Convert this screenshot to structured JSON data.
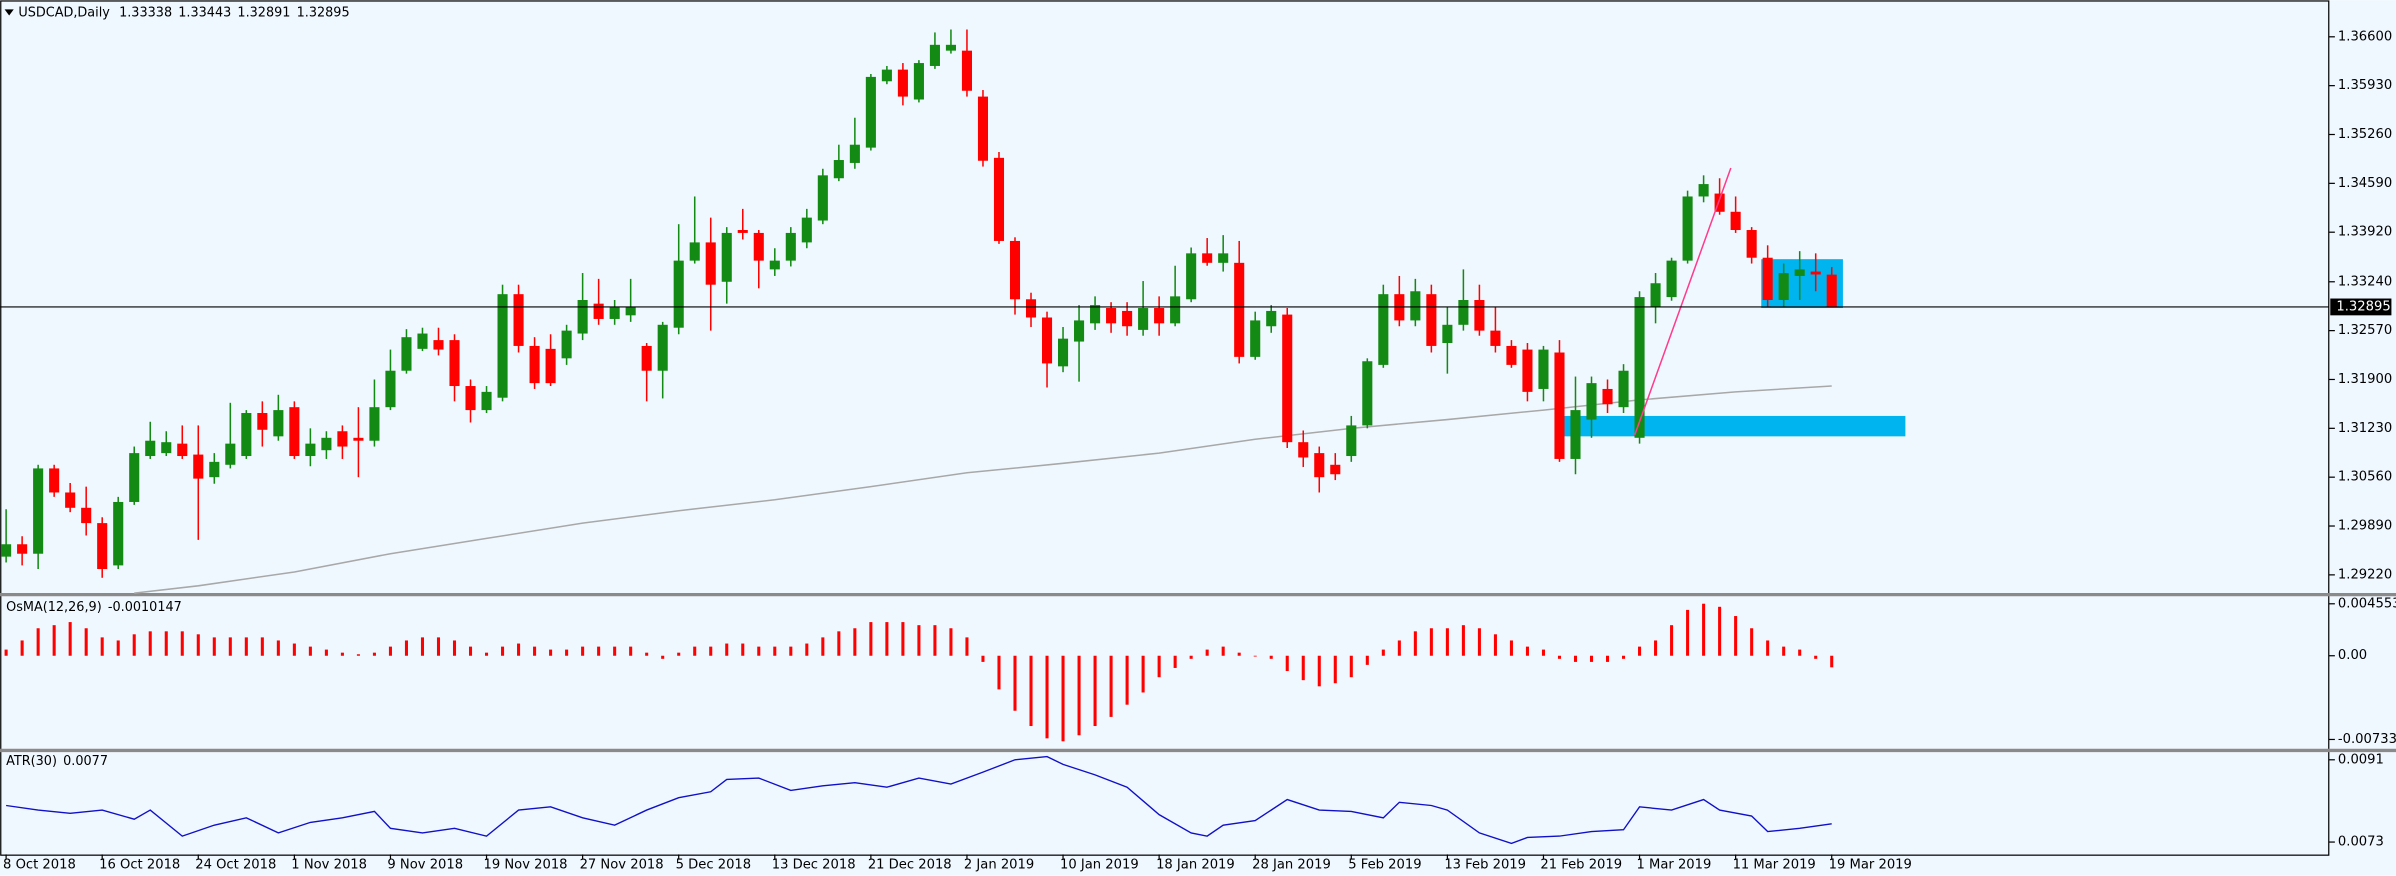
{
  "chart_data": [
    {
      "type": "candlestick",
      "title": "USDCAD,Daily",
      "categories": [
        "8 Oct 2018",
        null,
        null,
        null,
        null,
        null,
        "16 Oct 2018",
        null,
        null,
        null,
        null,
        null,
        "24 Oct 2018",
        null,
        null,
        null,
        null,
        null,
        "1 Nov 2018",
        null,
        null,
        null,
        null,
        null,
        "9 Nov 2018",
        null,
        null,
        null,
        null,
        null,
        "19 Nov 2018",
        null,
        null,
        null,
        null,
        null,
        "27 Nov 2018",
        null,
        null,
        null,
        null,
        null,
        "5 Dec 2018",
        null,
        null,
        null,
        null,
        null,
        "13 Dec 2018",
        null,
        null,
        null,
        null,
        null,
        "21 Dec 2018",
        null,
        null,
        null,
        null,
        null,
        "2 Jan 2019",
        null,
        null,
        null,
        null,
        null,
        "10 Jan 2019",
        null,
        null,
        null,
        null,
        null,
        "18 Jan 2019",
        null,
        null,
        null,
        null,
        null,
        "28 Jan 2019",
        null,
        null,
        null,
        null,
        null,
        "5 Feb 2019",
        null,
        null,
        null,
        null,
        null,
        "13 Feb 2019",
        null,
        null,
        null,
        null,
        null,
        "21 Feb 2019",
        null,
        null,
        null,
        null,
        null,
        "1 Mar 2019",
        null,
        null,
        null,
        null,
        null,
        "11 Mar 2019",
        null,
        null,
        null,
        null,
        null,
        "19 Mar 2019"
      ],
      "candles": [
        [
          1.2947,
          1.3012,
          1.2939,
          1.2964
        ],
        [
          1.2964,
          1.2975,
          1.2935,
          1.2951
        ],
        [
          1.2951,
          1.3073,
          1.293,
          1.3068
        ],
        [
          1.3068,
          1.3073,
          1.3029,
          1.3035
        ],
        [
          1.3035,
          1.3048,
          1.3008,
          1.3014
        ],
        [
          1.3014,
          1.3043,
          1.2976,
          1.2993
        ],
        [
          1.2993,
          1.3001,
          1.2918,
          1.293
        ],
        [
          1.2935,
          1.3029,
          1.293,
          1.3022
        ],
        [
          1.3022,
          1.3098,
          1.3018,
          1.3089
        ],
        [
          1.3085,
          1.3132,
          1.3081,
          1.3106
        ],
        [
          1.3089,
          1.3119,
          1.3085,
          1.3104
        ],
        [
          1.3102,
          1.3127,
          1.3081,
          1.3085
        ],
        [
          1.3087,
          1.3127,
          1.297,
          1.3054
        ],
        [
          1.3056,
          1.3089,
          1.3047,
          1.3077
        ],
        [
          1.3073,
          1.3158,
          1.3068,
          1.3102
        ],
        [
          1.3085,
          1.3148,
          1.3081,
          1.3144
        ],
        [
          1.3144,
          1.316,
          1.3098,
          1.3121
        ],
        [
          1.3112,
          1.3169,
          1.3106,
          1.3148
        ],
        [
          1.3152,
          1.316,
          1.3081,
          1.3085
        ],
        [
          1.3085,
          1.3123,
          1.3071,
          1.3102
        ],
        [
          1.3093,
          1.3119,
          1.3081,
          1.311
        ],
        [
          1.3119,
          1.3127,
          1.3081,
          1.3098
        ],
        [
          1.311,
          1.3152,
          1.3056,
          1.3106
        ],
        [
          1.3106,
          1.319,
          1.3098,
          1.3152
        ],
        [
          1.3152,
          1.3231,
          1.3148,
          1.3202
        ],
        [
          1.3202,
          1.3259,
          1.3198,
          1.3248
        ],
        [
          1.3232,
          1.3261,
          1.3229,
          1.3253
        ],
        [
          1.3244,
          1.3261,
          1.3223,
          1.3231
        ],
        [
          1.3244,
          1.3252,
          1.316,
          1.3181
        ],
        [
          1.3181,
          1.319,
          1.3131,
          1.3148
        ],
        [
          1.3148,
          1.3181,
          1.3144,
          1.3173
        ],
        [
          1.3165,
          1.332,
          1.316,
          1.3307
        ],
        [
          1.3307,
          1.332,
          1.3227,
          1.3236
        ],
        [
          1.3236,
          1.3248,
          1.3177,
          1.3185
        ],
        [
          1.3232,
          1.3252,
          1.3181,
          1.3185
        ],
        [
          1.3219,
          1.3265,
          1.321,
          1.3257
        ],
        [
          1.3253,
          1.3336,
          1.3244,
          1.3299
        ],
        [
          1.3294,
          1.3328,
          1.3265,
          1.3273
        ],
        [
          1.3273,
          1.3299,
          1.3265,
          1.329
        ],
        [
          1.3278,
          1.3328,
          1.3269,
          1.329
        ],
        [
          1.3236,
          1.324,
          1.316,
          1.3202
        ],
        [
          1.3202,
          1.3269,
          1.3164,
          1.3265
        ],
        [
          1.3261,
          1.3403,
          1.3252,
          1.3353
        ],
        [
          1.3353,
          1.3441,
          1.3349,
          1.3378
        ],
        [
          1.3378,
          1.3412,
          1.3257,
          1.332
        ],
        [
          1.3324,
          1.3399,
          1.3294,
          1.3391
        ],
        [
          1.3395,
          1.3424,
          1.3382,
          1.3391
        ],
        [
          1.3391,
          1.3395,
          1.3315,
          1.3353
        ],
        [
          1.3341,
          1.337,
          1.3332,
          1.3353
        ],
        [
          1.3353,
          1.3399,
          1.3345,
          1.3391
        ],
        [
          1.3378,
          1.3424,
          1.337,
          1.3412
        ],
        [
          1.3408,
          1.3479,
          1.3403,
          1.347
        ],
        [
          1.3466,
          1.3512,
          1.3462,
          1.3491
        ],
        [
          1.3487,
          1.3549,
          1.3479,
          1.3512
        ],
        [
          1.3508,
          1.3609,
          1.3504,
          1.3605
        ],
        [
          1.3599,
          1.362,
          1.3595,
          1.3615
        ],
        [
          1.3615,
          1.3624,
          1.3566,
          1.3578
        ],
        [
          1.3574,
          1.3628,
          1.357,
          1.3624
        ],
        [
          1.362,
          1.3666,
          1.3616,
          1.3649
        ],
        [
          1.3641,
          1.367,
          1.3637,
          1.3649
        ],
        [
          1.3641,
          1.367,
          1.3578,
          1.3586
        ],
        [
          1.3578,
          1.3587,
          1.3482,
          1.349
        ],
        [
          1.3494,
          1.3502,
          1.3376,
          1.338
        ],
        [
          1.338,
          1.3385,
          1.3279,
          1.33
        ],
        [
          1.33,
          1.3309,
          1.3262,
          1.3275
        ],
        [
          1.3275,
          1.3283,
          1.3179,
          1.3212
        ],
        [
          1.3208,
          1.3262,
          1.32,
          1.3246
        ],
        [
          1.3242,
          1.3292,
          1.3187,
          1.3271
        ],
        [
          1.3267,
          1.3304,
          1.3258,
          1.3292
        ],
        [
          1.3288,
          1.3296,
          1.3254,
          1.3267
        ],
        [
          1.3284,
          1.3296,
          1.325,
          1.3263
        ],
        [
          1.3258,
          1.3325,
          1.325,
          1.3288
        ],
        [
          1.3288,
          1.3304,
          1.325,
          1.3267
        ],
        [
          1.3267,
          1.3346,
          1.3263,
          1.3304
        ],
        [
          1.33,
          1.3371,
          1.3296,
          1.3363
        ],
        [
          1.3363,
          1.3384,
          1.3346,
          1.335
        ],
        [
          1.335,
          1.3388,
          1.3338,
          1.3363
        ],
        [
          1.335,
          1.338,
          1.3212,
          1.3221
        ],
        [
          1.3221,
          1.3283,
          1.3217,
          1.3271
        ],
        [
          1.3263,
          1.3292,
          1.3254,
          1.3284
        ],
        [
          1.3279,
          1.3288,
          1.3096,
          1.3104
        ],
        [
          1.3104,
          1.312,
          1.307,
          1.3083
        ],
        [
          1.3089,
          1.3098,
          1.3035,
          1.3056
        ],
        [
          1.3073,
          1.3089,
          1.3052,
          1.306
        ],
        [
          1.3085,
          1.314,
          1.3077,
          1.3127
        ],
        [
          1.3127,
          1.3219,
          1.3123,
          1.3215
        ],
        [
          1.321,
          1.332,
          1.3206,
          1.3307
        ],
        [
          1.3307,
          1.3332,
          1.3263,
          1.3271
        ],
        [
          1.3271,
          1.3328,
          1.3263,
          1.3311
        ],
        [
          1.3307,
          1.332,
          1.3227,
          1.3236
        ],
        [
          1.324,
          1.329,
          1.3198,
          1.3265
        ],
        [
          1.3265,
          1.3341,
          1.3257,
          1.3299
        ],
        [
          1.3299,
          1.332,
          1.325,
          1.3257
        ],
        [
          1.3257,
          1.329,
          1.3227,
          1.3236
        ],
        [
          1.3236,
          1.3244,
          1.3206,
          1.321
        ],
        [
          1.3231,
          1.324,
          1.316,
          1.3173
        ],
        [
          1.3177,
          1.3236,
          1.316,
          1.3231
        ],
        [
          1.3227,
          1.3244,
          1.3077,
          1.3081
        ],
        [
          1.3081,
          1.3194,
          1.306,
          1.3148
        ],
        [
          1.3135,
          1.3194,
          1.311,
          1.3185
        ],
        [
          1.3177,
          1.319,
          1.3144,
          1.3156
        ],
        [
          1.3152,
          1.3211,
          1.3144,
          1.3202
        ],
        [
          1.311,
          1.3311,
          1.3102,
          1.3303
        ],
        [
          1.329,
          1.3336,
          1.3267,
          1.3322
        ],
        [
          1.3303,
          1.3357,
          1.3298,
          1.3353
        ],
        [
          1.3353,
          1.3449,
          1.3349,
          1.3441
        ],
        [
          1.3441,
          1.347,
          1.3433,
          1.3458
        ],
        [
          1.3445,
          1.3466,
          1.3416,
          1.342
        ],
        [
          1.342,
          1.3441,
          1.3391,
          1.3395
        ],
        [
          1.3395,
          1.3399,
          1.3349,
          1.3357
        ],
        [
          1.3357,
          1.3374,
          1.329,
          1.3299
        ],
        [
          1.3299,
          1.3349,
          1.329,
          1.3336
        ],
        [
          1.3332,
          1.3366,
          1.3299,
          1.3341
        ],
        [
          1.3338,
          1.3363,
          1.3311,
          1.3334
        ],
        [
          1.33338,
          1.33443,
          1.32891,
          1.32895
        ]
      ],
      "up_color": "#138a13",
      "down_color": "#ff0000",
      "ylim": [
        1.2897,
        1.3706
      ],
      "yticks": [
        {
          "value": 1.366,
          "label": "1.36600"
        },
        {
          "value": 1.3593,
          "label": "1.35930"
        },
        {
          "value": 1.3526,
          "label": "1.35260"
        },
        {
          "value": 1.3459,
          "label": "1.34590"
        },
        {
          "value": 1.3392,
          "label": "1.33920"
        },
        {
          "value": 1.3324,
          "label": "1.33240"
        },
        {
          "value": 1.3257,
          "label": "1.32570"
        },
        {
          "value": 1.319,
          "label": "1.31900"
        },
        {
          "value": 1.3123,
          "label": "1.31230"
        },
        {
          "value": 1.3056,
          "label": "1.30560"
        },
        {
          "value": 1.2989,
          "label": "1.29890"
        },
        {
          "value": 1.2922,
          "label": "1.29220"
        }
      ],
      "ma": {
        "color": "#a8a8a8",
        "x": [
          8,
          12,
          18,
          24,
          30,
          36,
          42,
          48,
          54,
          60,
          66,
          72,
          78,
          84,
          90,
          96,
          102,
          108,
          114
        ],
        "values": [
          1.2897,
          1.2907,
          1.2926,
          1.2951,
          1.2972,
          1.2993,
          1.301,
          1.3025,
          1.3043,
          1.3062,
          1.3075,
          1.3089,
          1.3108,
          1.3123,
          1.3135,
          1.3148,
          1.3162,
          1.3173,
          1.3181
        ]
      },
      "shapes": [
        {
          "type": "rect",
          "color": "#00b4f0",
          "x": [
            97.2,
            118.6
          ],
          "y": [
            1.3112,
            1.314
          ]
        },
        {
          "type": "rect",
          "color": "#00b4f0",
          "x": [
            109.6,
            114.7
          ],
          "y": [
            1.3288,
            1.3355
          ]
        },
        {
          "type": "line",
          "color": "#ff3c8c",
          "x": [
            101.7,
            107.7
          ],
          "y": [
            1.3114,
            1.348
          ]
        }
      ]
    },
    {
      "type": "histogram",
      "title": "OsMA(12,26,9)",
      "color": "#ff0000",
      "values": [
        0.00054,
        0.00134,
        0.00241,
        0.00268,
        0.00295,
        0.00241,
        0.00161,
        0.00134,
        0.00188,
        0.00214,
        0.00214,
        0.00214,
        0.00188,
        0.00161,
        0.00161,
        0.00161,
        0.00161,
        0.00134,
        0.00107,
        0.0008,
        0.00054,
        0.00027,
        0.00013,
        0.00027,
        0.0008,
        0.00134,
        0.00161,
        0.00161,
        0.00134,
        0.0008,
        0.00027,
        0.0008,
        0.00107,
        0.0008,
        0.00054,
        0.00054,
        0.0008,
        0.0008,
        0.0008,
        0.0008,
        0.00027,
        -0.00027,
        0.00027,
        0.0008,
        0.0008,
        0.00107,
        0.00107,
        0.0008,
        0.0008,
        0.0008,
        0.00107,
        0.00161,
        0.00214,
        0.00241,
        0.00295,
        0.00295,
        0.00295,
        0.00268,
        0.00268,
        0.00241,
        0.00161,
        -0.00054,
        -0.00295,
        -0.00482,
        -0.00616,
        -0.00724,
        -0.0075,
        -0.00697,
        -0.00616,
        -0.00536,
        -0.00429,
        -0.00322,
        -0.00188,
        -0.00107,
        -0.00027,
        0.00054,
        0.0008,
        0.00027,
        0,
        -0.00027,
        -0.00134,
        -0.00214,
        -0.00268,
        -0.00241,
        -0.00188,
        -0.0008,
        0.00054,
        0.00134,
        0.00214,
        0.00241,
        0.00241,
        0.00268,
        0.00241,
        0.00188,
        0.00134,
        0.0008,
        0.00054,
        -0.00027,
        -0.00054,
        -0.00054,
        -0.00054,
        -0.00027,
        0.0008,
        0.00134,
        0.00268,
        0.00402,
        0.00456,
        0.00429,
        0.00348,
        0.00241,
        0.00134,
        0.0008,
        0.00054,
        -0.00027,
        -0.0010147
      ],
      "ylim": [
        -0.00817,
        0.005357
      ],
      "yticks": [
        0.0045538,
        {
          "value": 0,
          "label": "0.00"
        },
        -0.0073377
      ]
    },
    {
      "type": "line",
      "title": "ATR(30)",
      "color": "#1010c8",
      "x": [
        0,
        2,
        4,
        6,
        8,
        9,
        11,
        13,
        15,
        17,
        19,
        21,
        23,
        24,
        26,
        28,
        30,
        32,
        34,
        36,
        38,
        40,
        42,
        44,
        45,
        47,
        49,
        51,
        53,
        55,
        57,
        59,
        61,
        63,
        65,
        66,
        68,
        70,
        72,
        74,
        75,
        76,
        78,
        80,
        82,
        84,
        86,
        87,
        89,
        90,
        92,
        94,
        95,
        97,
        99,
        101,
        102,
        104,
        106,
        107,
        109,
        110,
        112,
        114
      ],
      "values": [
        0.0081,
        0.008,
        0.00793,
        0.008,
        0.0078,
        0.008,
        0.00743,
        0.00767,
        0.00783,
        0.0075,
        0.00773,
        0.00783,
        0.00797,
        0.0076,
        0.0075,
        0.0076,
        0.00743,
        0.008,
        0.00807,
        0.00783,
        0.00767,
        0.008,
        0.00827,
        0.0084,
        0.00867,
        0.0087,
        0.00843,
        0.00853,
        0.0086,
        0.0085,
        0.0087,
        0.00857,
        0.00883,
        0.0091,
        0.00917,
        0.009,
        0.00877,
        0.0085,
        0.0079,
        0.0075,
        0.00743,
        0.00767,
        0.00777,
        0.00823,
        0.008,
        0.00797,
        0.00783,
        0.00817,
        0.0081,
        0.008,
        0.0075,
        0.00727,
        0.0074,
        0.00743,
        0.00753,
        0.00757,
        0.00807,
        0.008,
        0.00823,
        0.008,
        0.00787,
        0.00753,
        0.0076,
        0.0077
      ],
      "ylim": [
        0.00703,
        0.00927
      ],
      "yticks": [
        0.0091,
        0.0073
      ]
    }
  ]
}
